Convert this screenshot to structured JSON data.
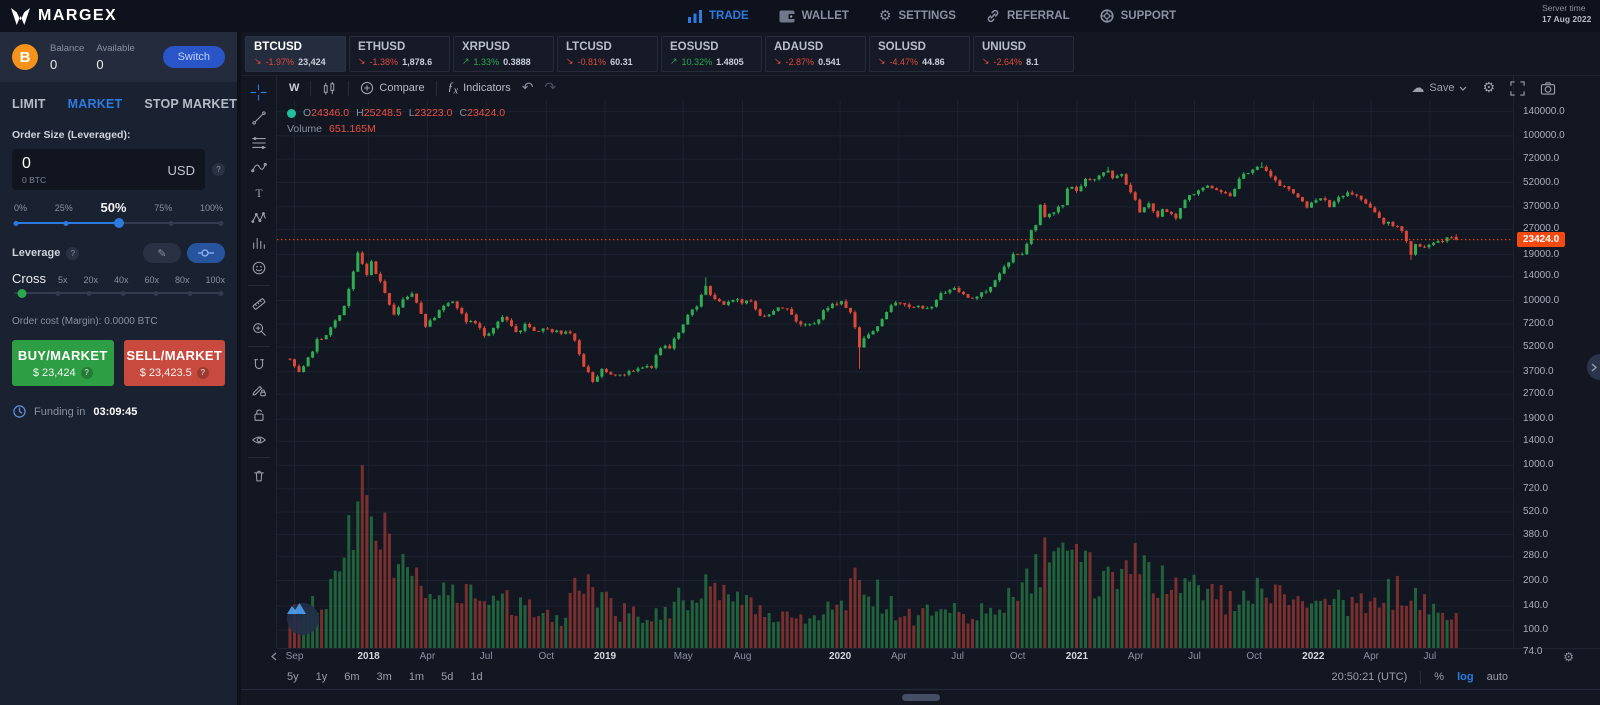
{
  "nav": {
    "brand": "MARGEX",
    "items": [
      {
        "label": "TRADE",
        "icon": "bar-chart-icon",
        "active": true
      },
      {
        "label": "WALLET",
        "icon": "wallet-icon",
        "active": false
      },
      {
        "label": "SETTINGS",
        "icon": "gear-icon",
        "active": false
      },
      {
        "label": "REFERRAL",
        "icon": "link-icon",
        "active": false
      },
      {
        "label": "SUPPORT",
        "icon": "lifebuoy-icon",
        "active": false
      }
    ],
    "server_time_label": "Server time",
    "server_time_date": "17 Aug 2022"
  },
  "account": {
    "balance_label": "Balance",
    "balance": "0",
    "available_label": "Available",
    "available": "0",
    "switch_label": "Switch"
  },
  "order_panel": {
    "tabs": [
      {
        "label": "LIMIT",
        "active": false
      },
      {
        "label": "MARKET",
        "active": true
      },
      {
        "label": "STOP MARKET",
        "active": false
      }
    ],
    "order_size_label": "Order Size (Leveraged):",
    "size_value": "0",
    "size_sub": "0 BTC",
    "size_unit": "USD",
    "help": "?",
    "percent_marks": [
      "0%",
      "25%",
      "50%",
      "75%",
      "100%"
    ],
    "percent_active_index": 2,
    "percent_value": 50,
    "leverage_label": "Leverage",
    "leverage_help": "?",
    "leverage_mode": "Cross",
    "leverage_marks": [
      "5x",
      "20x",
      "40x",
      "60x",
      "80x",
      "100x"
    ],
    "order_cost": "Order cost (Margin): 0.0000 BTC",
    "buy_label": "BUY/MARKET",
    "buy_price": "$ 23,424",
    "sell_label": "SELL/MARKET",
    "sell_price": "$ 23,423.5",
    "funding_label": "Funding in",
    "funding_time": "03:09:45"
  },
  "markets": [
    {
      "symbol": "BTCUSD",
      "change": "-1.97%",
      "price": "23,424",
      "dir": "down",
      "active": true
    },
    {
      "symbol": "ETHUSD",
      "change": "-1.38%",
      "price": "1,878.6",
      "dir": "down",
      "active": false
    },
    {
      "symbol": "XRPUSD",
      "change": "1.33%",
      "price": "0.3888",
      "dir": "up",
      "active": false
    },
    {
      "symbol": "LTCUSD",
      "change": "-0.81%",
      "price": "60.31",
      "dir": "down",
      "active": false
    },
    {
      "symbol": "EOSUSD",
      "change": "10.32%",
      "price": "1.4805",
      "dir": "up",
      "active": false
    },
    {
      "symbol": "ADAUSD",
      "change": "-2.87%",
      "price": "0.541",
      "dir": "down",
      "active": false
    },
    {
      "symbol": "SOLUSD",
      "change": "-4.47%",
      "price": "44.86",
      "dir": "down",
      "active": false
    },
    {
      "symbol": "UNIUSD",
      "change": "-2.64%",
      "price": "8.1",
      "dir": "down",
      "active": false
    }
  ],
  "chart": {
    "symbol": "BTCUSD",
    "interval": "W",
    "type": "candlestick",
    "scale": "log",
    "toolbar": {
      "timeframe": "W",
      "compare_label": "Compare",
      "indicators_label": "Indicators",
      "save_label": "Save"
    },
    "legend": {
      "o_label": "O",
      "o": "24346.0",
      "h_label": "H",
      "h": "25248.5",
      "l_label": "L",
      "l": "23223.0",
      "c_label": "C",
      "c": "23424.0",
      "volume_label": "Volume",
      "volume": "651.165M"
    },
    "last_price": "23424.0",
    "last_price_value": 23424,
    "last_candle": {
      "o": 24346.0,
      "h": 25248.5,
      "l": 23223.0,
      "c": 23424.0
    },
    "colors": {
      "up": "#2eae53",
      "down": "#de4839",
      "accent": "#2d7be0",
      "badge": "#f4490f",
      "grid": "#1c2230"
    },
    "price_ticks": [
      "140000.0",
      "100000.0",
      "72000.0",
      "52000.0",
      "37000.0",
      "27000.0",
      "19000.0",
      "14000.0",
      "10000.0",
      "7200.0",
      "5200.0",
      "3700.0",
      "2700.0",
      "1900.0",
      "1400.0",
      "1000.0",
      "720.0",
      "520.0",
      "380.0",
      "280.0",
      "200.0",
      "140.0",
      "100.0",
      "74.0"
    ],
    "time_labels": [
      {
        "label": "Sep",
        "week": 1,
        "year": false
      },
      {
        "label": "2018",
        "week": 17.4,
        "year": true
      },
      {
        "label": "Apr",
        "week": 30.4,
        "year": false
      },
      {
        "label": "Jul",
        "week": 43.4,
        "year": false
      },
      {
        "label": "Oct",
        "week": 56.7,
        "year": false
      },
      {
        "label": "2019",
        "week": 69.7,
        "year": true
      },
      {
        "label": "May",
        "week": 87,
        "year": false
      },
      {
        "label": "Aug",
        "week": 100.1,
        "year": false
      },
      {
        "label": "2020",
        "week": 121.7,
        "year": true
      },
      {
        "label": "Apr",
        "week": 134.7,
        "year": false
      },
      {
        "label": "Jul",
        "week": 147.7,
        "year": false
      },
      {
        "label": "Oct",
        "week": 161,
        "year": false
      },
      {
        "label": "2021",
        "week": 174.1,
        "year": true
      },
      {
        "label": "Apr",
        "week": 187.1,
        "year": false
      },
      {
        "label": "Jul",
        "week": 200.1,
        "year": false
      },
      {
        "label": "Oct",
        "week": 213.3,
        "year": false
      },
      {
        "label": "2022",
        "week": 226.4,
        "year": true
      },
      {
        "label": "Apr",
        "week": 239.2,
        "year": false
      },
      {
        "label": "Jul",
        "week": 252.2,
        "year": false
      }
    ],
    "weeks": 258,
    "price_anchors": [
      [
        0,
        4340
      ],
      [
        2,
        3700
      ],
      [
        4,
        4400
      ],
      [
        6,
        5700
      ],
      [
        8,
        6150
      ],
      [
        10,
        7400
      ],
      [
        12,
        9250
      ],
      [
        14,
        15000
      ],
      [
        15,
        19300
      ],
      [
        17,
        14100
      ],
      [
        18,
        16900
      ],
      [
        21,
        11200
      ],
      [
        23,
        8300
      ],
      [
        25,
        10300
      ],
      [
        27,
        11300
      ],
      [
        29,
        8500
      ],
      [
        30,
        6950
      ],
      [
        32,
        7900
      ],
      [
        34,
        9250
      ],
      [
        36,
        9650
      ],
      [
        38,
        8500
      ],
      [
        39,
        7500
      ],
      [
        41,
        7250
      ],
      [
        43,
        6200
      ],
      [
        45,
        6750
      ],
      [
        47,
        7900
      ],
      [
        49,
        7050
      ],
      [
        50,
        6300
      ],
      [
        52,
        7050
      ],
      [
        54,
        6500
      ],
      [
        56,
        6600
      ],
      [
        58,
        6550
      ],
      [
        60,
        6350
      ],
      [
        62,
        6400
      ],
      [
        63,
        5600
      ],
      [
        65,
        4000
      ],
      [
        67,
        3250
      ],
      [
        69,
        3850
      ],
      [
        71,
        3650
      ],
      [
        73,
        3550
      ],
      [
        75,
        3650
      ],
      [
        77,
        3800
      ],
      [
        80,
        4000
      ],
      [
        82,
        5150
      ],
      [
        84,
        5250
      ],
      [
        86,
        6350
      ],
      [
        88,
        8050
      ],
      [
        90,
        9300
      ],
      [
        92,
        12000
      ],
      [
        93,
        10800
      ],
      [
        96,
        9500
      ],
      [
        98,
        10300
      ],
      [
        100,
        9600
      ],
      [
        102,
        10000
      ],
      [
        104,
        8050
      ],
      [
        106,
        8250
      ],
      [
        108,
        9200
      ],
      [
        110,
        8800
      ],
      [
        112,
        7300
      ],
      [
        114,
        7100
      ],
      [
        116,
        7250
      ],
      [
        118,
        8600
      ],
      [
        120,
        9350
      ],
      [
        122,
        9900
      ],
      [
        124,
        8600
      ],
      [
        126,
        5300
      ],
      [
        128,
        6250
      ],
      [
        130,
        7100
      ],
      [
        132,
        8650
      ],
      [
        134,
        9700
      ],
      [
        136,
        9450
      ],
      [
        138,
        9350
      ],
      [
        140,
        9150
      ],
      [
        142,
        9200
      ],
      [
        144,
        11050
      ],
      [
        146,
        11900
      ],
      [
        148,
        11500
      ],
      [
        150,
        10300
      ],
      [
        152,
        10750
      ],
      [
        154,
        11350
      ],
      [
        156,
        13550
      ],
      [
        158,
        15950
      ],
      [
        160,
        18650
      ],
      [
        162,
        19150
      ],
      [
        164,
        26450
      ],
      [
        165,
        29000
      ],
      [
        166,
        38200
      ],
      [
        167,
        32100
      ],
      [
        169,
        34300
      ],
      [
        171,
        38900
      ],
      [
        172,
        48900
      ],
      [
        174,
        46300
      ],
      [
        176,
        54100
      ],
      [
        178,
        55800
      ],
      [
        179,
        58800
      ],
      [
        181,
        59900
      ],
      [
        182,
        56200
      ],
      [
        184,
        57800
      ],
      [
        186,
        46400
      ],
      [
        188,
        34700
      ],
      [
        190,
        39000
      ],
      [
        192,
        32200
      ],
      [
        193,
        35000
      ],
      [
        195,
        33800
      ],
      [
        196,
        31500
      ],
      [
        198,
        41600
      ],
      [
        200,
        43800
      ],
      [
        202,
        48900
      ],
      [
        204,
        48800
      ],
      [
        206,
        46000
      ],
      [
        208,
        42800
      ],
      [
        210,
        54700
      ],
      [
        212,
        60900
      ],
      [
        213,
        61300
      ],
      [
        215,
        65500
      ],
      [
        217,
        56500
      ],
      [
        219,
        50100
      ],
      [
        221,
        46300
      ],
      [
        223,
        41900
      ],
      [
        225,
        36500
      ],
      [
        226,
        38500
      ],
      [
        228,
        42400
      ],
      [
        230,
        37800
      ],
      [
        232,
        41300
      ],
      [
        234,
        45500
      ],
      [
        236,
        42300
      ],
      [
        238,
        38600
      ],
      [
        240,
        34100
      ],
      [
        242,
        29500
      ],
      [
        244,
        29000
      ],
      [
        246,
        26700
      ],
      [
        248,
        19000
      ],
      [
        249,
        21500
      ],
      [
        251,
        21600
      ],
      [
        253,
        22600
      ],
      [
        255,
        23300
      ],
      [
        257,
        24300
      ],
      [
        258,
        23424
      ]
    ],
    "wick_highs": [
      [
        15,
        19900
      ],
      [
        92,
        13800
      ],
      [
        181,
        64800
      ],
      [
        215,
        69000
      ]
    ],
    "wick_lows": [
      [
        67,
        3150
      ],
      [
        126,
        3850
      ],
      [
        248,
        17600
      ]
    ],
    "volume_anchors": [
      [
        0,
        0.22
      ],
      [
        3,
        0.3
      ],
      [
        6,
        0.28
      ],
      [
        10,
        0.45
      ],
      [
        14,
        0.8
      ],
      [
        16,
        1.0
      ],
      [
        19,
        0.85
      ],
      [
        23,
        0.62
      ],
      [
        27,
        0.52
      ],
      [
        30,
        0.42
      ],
      [
        34,
        0.45
      ],
      [
        38,
        0.42
      ],
      [
        43,
        0.3
      ],
      [
        47,
        0.33
      ],
      [
        52,
        0.28
      ],
      [
        56,
        0.23
      ],
      [
        60,
        0.2
      ],
      [
        63,
        0.38
      ],
      [
        67,
        0.45
      ],
      [
        71,
        0.28
      ],
      [
        77,
        0.22
      ],
      [
        84,
        0.28
      ],
      [
        88,
        0.38
      ],
      [
        92,
        0.48
      ],
      [
        96,
        0.36
      ],
      [
        102,
        0.28
      ],
      [
        108,
        0.22
      ],
      [
        114,
        0.18
      ],
      [
        120,
        0.26
      ],
      [
        126,
        0.5
      ],
      [
        132,
        0.3
      ],
      [
        138,
        0.22
      ],
      [
        144,
        0.26
      ],
      [
        150,
        0.22
      ],
      [
        156,
        0.26
      ],
      [
        160,
        0.34
      ],
      [
        165,
        0.5
      ],
      [
        168,
        0.72
      ],
      [
        172,
        0.65
      ],
      [
        178,
        0.5
      ],
      [
        184,
        0.45
      ],
      [
        188,
        0.68
      ],
      [
        193,
        0.45
      ],
      [
        198,
        0.4
      ],
      [
        204,
        0.38
      ],
      [
        208,
        0.32
      ],
      [
        213,
        0.38
      ],
      [
        217,
        0.38
      ],
      [
        221,
        0.33
      ],
      [
        226,
        0.38
      ],
      [
        230,
        0.33
      ],
      [
        234,
        0.32
      ],
      [
        238,
        0.33
      ],
      [
        244,
        0.38
      ],
      [
        248,
        0.42
      ],
      [
        253,
        0.3
      ],
      [
        258,
        0.24
      ]
    ]
  },
  "bottom_bar": {
    "ranges": [
      "5y",
      "1y",
      "6m",
      "3m",
      "1m",
      "5d",
      "1d"
    ],
    "clock": "20:50:21 (UTC)",
    "percent_label": "%",
    "log_label": "log",
    "auto_label": "auto"
  }
}
